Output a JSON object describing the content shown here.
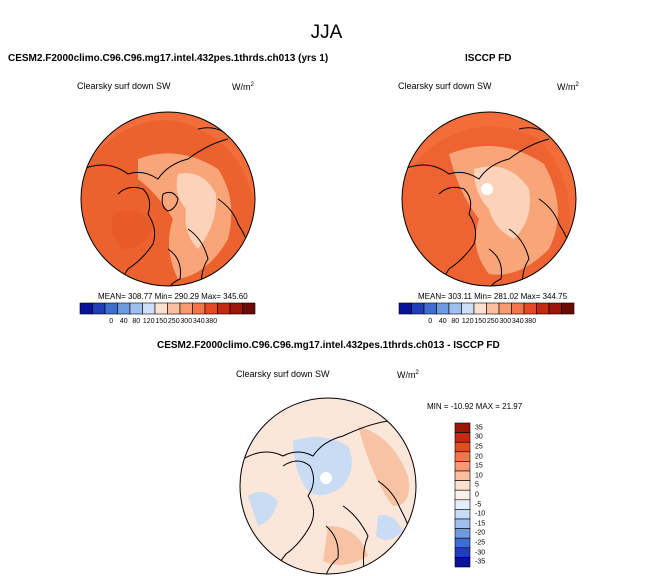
{
  "season_title": "JJA",
  "left_panel": {
    "header": "CESM2.F2000climo.C96.C96.mg17.intel.432pes.1thrds.ch013 (yrs 1)",
    "variable": "Clearsky surf down SW",
    "units_base": "W/m",
    "units_exp": "2",
    "stats": "MEAN= 308.77  Min= 290.29  Max= 345.60"
  },
  "right_panel": {
    "header": "ISCCP FD",
    "variable": "Clearsky surf down SW",
    "units_base": "W/m",
    "units_exp": "2",
    "stats": "MEAN= 303.11  Min= 281.02  Max= 344.75"
  },
  "diff_panel": {
    "header": "CESM2.F2000climo.C96.C96.mg17.intel.432pes.1thrds.ch013 - ISCCP FD",
    "variable": "Clearsky surf down SW",
    "units_base": "W/m",
    "units_exp": "2",
    "stats": "MIN = -10.92  MAX =  21.97"
  },
  "abs_colorbar": {
    "labels": [
      "0",
      "40",
      "80",
      "120",
      "150",
      "250",
      "300",
      "340",
      "380"
    ],
    "colors": [
      "#08139a",
      "#1f3fb8",
      "#3f6ed0",
      "#6f9ae0",
      "#9fbfee",
      "#cfe0f6",
      "#fde1cf",
      "#fbbf9f",
      "#f89a70",
      "#f2764a",
      "#e64a23",
      "#c42a12",
      "#9b1508",
      "#6d0a03"
    ]
  },
  "diff_colorbar": {
    "labels": [
      "35",
      "30",
      "25",
      "20",
      "15",
      "10",
      "5",
      "0",
      "-5",
      "-10",
      "-15",
      "-20",
      "-25",
      "-30",
      "-35"
    ],
    "colors": [
      "#9b1508",
      "#c42a12",
      "#e64a23",
      "#f2764a",
      "#f89a70",
      "#fbbf9f",
      "#fde1cf",
      "#fdf1e8",
      "#e4eefa",
      "#c6dbf5",
      "#9fbfee",
      "#6f9ae0",
      "#3f6ed0",
      "#1f3fb8",
      "#08139a"
    ]
  },
  "colors": {
    "field_orange": "#f26d3a",
    "field_orange_dark": "#e85a27",
    "field_light": "#f9a57a",
    "field_pale": "#fcd2b8",
    "diff_base": "#fbe6da",
    "diff_blue": "#c9dcf4"
  }
}
